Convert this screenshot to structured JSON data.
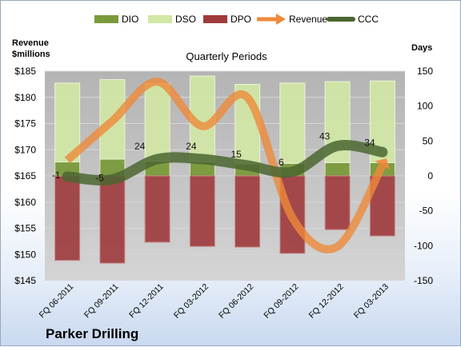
{
  "chart_data": {
    "type": "bar+line",
    "title": "Quarterly Periods",
    "company": "Parker Drilling",
    "left_axis_label": [
      "Revenue",
      "$millions"
    ],
    "right_axis_label": "Days",
    "left_ylim": [
      145,
      185
    ],
    "left_ticks": [
      "$145",
      "$150",
      "$155",
      "$160",
      "$165",
      "$170",
      "$175",
      "$180",
      "$185"
    ],
    "left_tick_values": [
      145,
      150,
      155,
      160,
      165,
      170,
      175,
      180,
      185
    ],
    "right_ylim": [
      -150,
      150
    ],
    "right_ticks": [
      "-150",
      "-100",
      "-50",
      "0",
      "50",
      "100",
      "150"
    ],
    "right_tick_values": [
      -150,
      -100,
      -50,
      0,
      50,
      100,
      150
    ],
    "categories": [
      "FQ 06-2011",
      "FQ 09-2011",
      "FQ 12-2011",
      "FQ 03-2012",
      "FQ 06-2012",
      "FQ 09-2012",
      "FQ 12-2012",
      "FQ 03-2013"
    ],
    "legend": [
      "DIO",
      "DSO",
      "DPO",
      "Revenue",
      "CCC"
    ],
    "series": [
      {
        "name": "DIO",
        "axis": "right",
        "values": [
          20,
          24,
          21,
          20,
          17,
          18,
          19,
          19
        ]
      },
      {
        "name": "DSO",
        "axis": "right",
        "values": [
          113,
          114,
          111,
          123,
          114,
          115,
          116,
          117
        ]
      },
      {
        "name": "DPO",
        "axis": "right",
        "values": [
          -121,
          -125,
          -95,
          -101,
          -102,
          -111,
          -77,
          -86
        ]
      },
      {
        "name": "Revenue",
        "axis": "left",
        "values": [
          168,
          175.5,
          183,
          174.5,
          180,
          157,
          151.5,
          167
        ]
      },
      {
        "name": "CCC",
        "axis": "right",
        "values": [
          -1,
          -5,
          24,
          24,
          15,
          6,
          43,
          34
        ]
      }
    ],
    "ccc_labels": [
      "-1",
      "-5",
      "24",
      "24",
      "15",
      "6",
      "43",
      "34"
    ],
    "colors": {
      "DIO": "#7a9a3a",
      "DSO": "#d2e8a4",
      "DPO": "#9e3a3c",
      "Revenue": "#ee8a3a",
      "CCC": "#4b6630",
      "plot_bg": "#bdbdbd"
    }
  }
}
